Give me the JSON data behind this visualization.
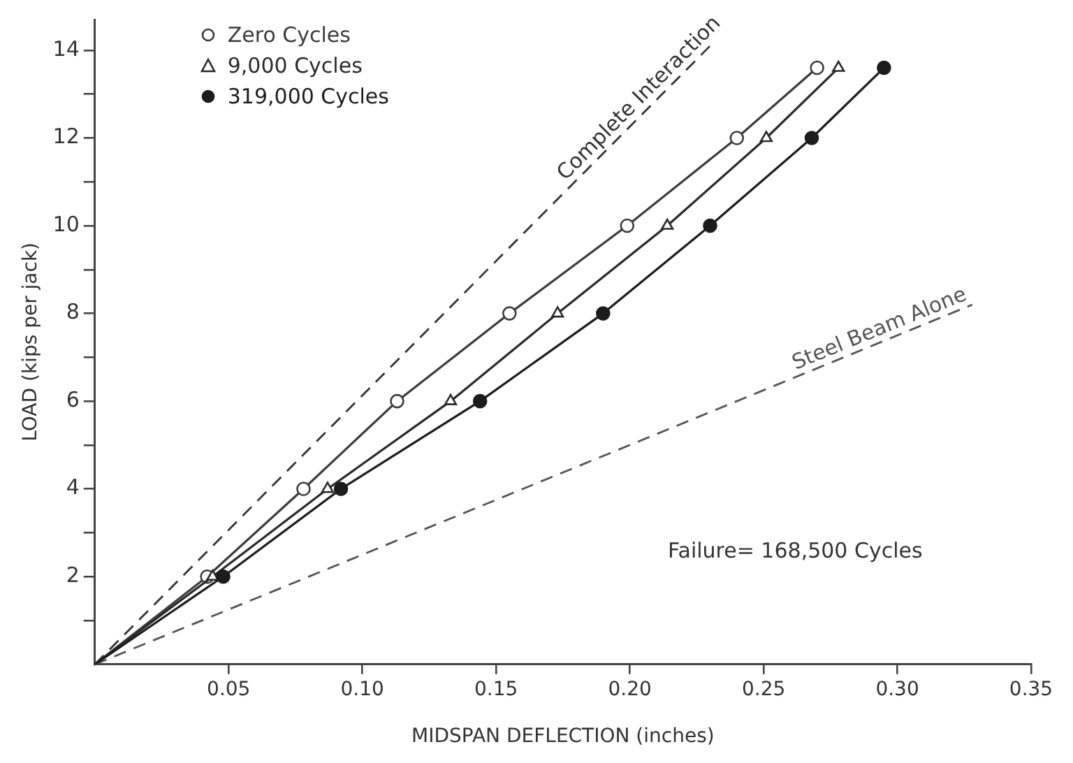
{
  "chart_data": {
    "type": "line",
    "xlabel": "MIDSPAN DEFLECTION (inches)",
    "ylabel": "LOAD (kips per jack)",
    "xlim": [
      0,
      0.35
    ],
    "xticks": [
      0.05,
      {
        "value": 0.1,
        "label": "0.10"
      },
      0.15,
      {
        "value": 0.2,
        "label": "0.20"
      },
      0.25,
      {
        "value": 0.3,
        "label": "0.30"
      },
      0.35
    ],
    "ylim": [
      0,
      14.7
    ],
    "yticks": [
      {
        "value": 1,
        "label": null
      },
      2,
      {
        "value": 3,
        "label": null
      },
      4,
      {
        "value": 5,
        "label": null
      },
      6,
      {
        "value": 7,
        "label": null
      },
      8,
      {
        "value": 9,
        "label": null
      },
      10,
      {
        "value": 11,
        "label": null
      },
      12,
      {
        "value": 13,
        "label": null
      },
      14
    ],
    "grid": false,
    "legend": "top left",
    "line_style": "solid",
    "series": [
      {
        "name": "Zero Cycles",
        "color": "#3c3c3c",
        "marker": "circle",
        "x": [
          0,
          0.042,
          0.078,
          0.113,
          0.155,
          0.199,
          0.24,
          0.27
        ],
        "values": [
          0,
          2,
          4,
          6,
          8,
          10,
          12,
          13.6
        ]
      },
      {
        "name": "9,000 Cycles",
        "color": "#2a2a2a",
        "marker": "triangle",
        "x": [
          0,
          0.044,
          0.087,
          0.133,
          0.173,
          0.214,
          0.251,
          0.278
        ],
        "values": [
          0,
          2,
          4,
          6,
          8,
          10,
          12,
          13.6
        ]
      },
      {
        "name": "319,000 Cycles",
        "color": "#1c1c1c",
        "marker": "circle",
        "x": [
          0,
          0.048,
          0.092,
          0.144,
          0.19,
          0.23,
          0.268,
          0.295
        ],
        "values": [
          0,
          2,
          4,
          6,
          8,
          10,
          12,
          13.6
        ]
      },
      {
        "name": "Complete Interaction",
        "color": "#333333",
        "marker": "none",
        "line_style": "dashed",
        "x": [
          0,
          0.23
        ],
        "values": [
          0,
          14.1
        ]
      },
      {
        "name": "Steel Beam Alone",
        "color": "#555555",
        "marker": "none",
        "line_style": "dashed",
        "x": [
          0,
          0.328
        ],
        "values": [
          0,
          8.2
        ]
      }
    ],
    "annotations": [
      "Failure= 168,500 Cycles"
    ]
  }
}
